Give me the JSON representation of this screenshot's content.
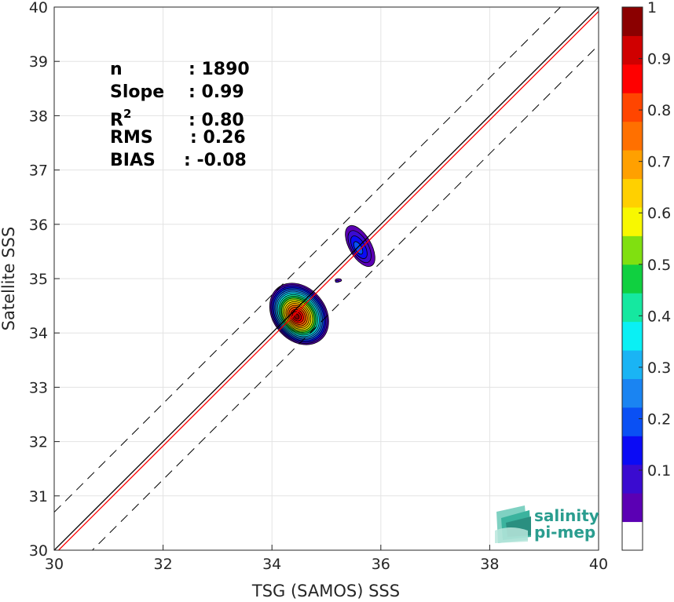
{
  "chart_data": {
    "type": "heatmap",
    "xlabel": "TSG (SAMOS) SSS",
    "ylabel": "Satellite SSS",
    "xlim": [
      30,
      40
    ],
    "ylim": [
      30,
      40
    ],
    "x_ticks": [
      30,
      32,
      34,
      36,
      38,
      40
    ],
    "y_ticks": [
      30,
      31,
      32,
      33,
      34,
      35,
      36,
      37,
      38,
      39,
      40
    ],
    "grid": true,
    "lines": [
      {
        "name": "one-to-one",
        "color": "#000000",
        "style": "solid",
        "intercept": 0
      },
      {
        "name": "regression",
        "color": "#ff0000",
        "style": "solid",
        "intercept": -0.08
      },
      {
        "name": "upper-bound",
        "color": "#000000",
        "style": "dashed",
        "intercept": 0.7
      },
      {
        "name": "lower-bound",
        "color": "#000000",
        "style": "dashed",
        "intercept": -0.7
      }
    ],
    "density_clusters": [
      {
        "cx": 34.5,
        "cy": 34.35,
        "rx": 0.48,
        "ry": 0.62,
        "peak": 1.0,
        "tilt": -40
      },
      {
        "cx": 35.62,
        "cy": 35.6,
        "rx": 0.2,
        "ry": 0.42,
        "peak": 0.22,
        "tilt": -30
      },
      {
        "cx": 35.22,
        "cy": 34.97,
        "rx": 0.06,
        "ry": 0.03,
        "peak": 0.12,
        "tilt": 0
      }
    ],
    "colorbar": {
      "min": 0,
      "max": 1,
      "ticks": [
        "0.1",
        "0.2",
        "0.3",
        "0.4",
        "0.5",
        "0.6",
        "0.7",
        "0.8",
        "0.9",
        "1"
      ],
      "levels": [
        "#ffffff",
        "#5b00b4",
        "#3a0bd0",
        "#0b0bf5",
        "#0a50f4",
        "#1a84f2",
        "#1ab4f4",
        "#0af0f4",
        "#15e8a0",
        "#10d040",
        "#80e010",
        "#f8f800",
        "#ffd000",
        "#ffa000",
        "#ff7000",
        "#ff4500",
        "#ff0000",
        "#d00000",
        "#8b0000"
      ]
    },
    "stats": [
      {
        "label": "n",
        "value": ": 1890"
      },
      {
        "label": "Slope",
        "value": ": 0.99"
      },
      {
        "label": "R",
        "sup": "2",
        "value": ": 0.80"
      },
      {
        "label": "RMS",
        "value": ": 0.26"
      },
      {
        "label": "BIAS",
        "value": ": -0.08"
      }
    ]
  },
  "logo": {
    "line1": "salinity",
    "line2": "pi-mep"
  }
}
